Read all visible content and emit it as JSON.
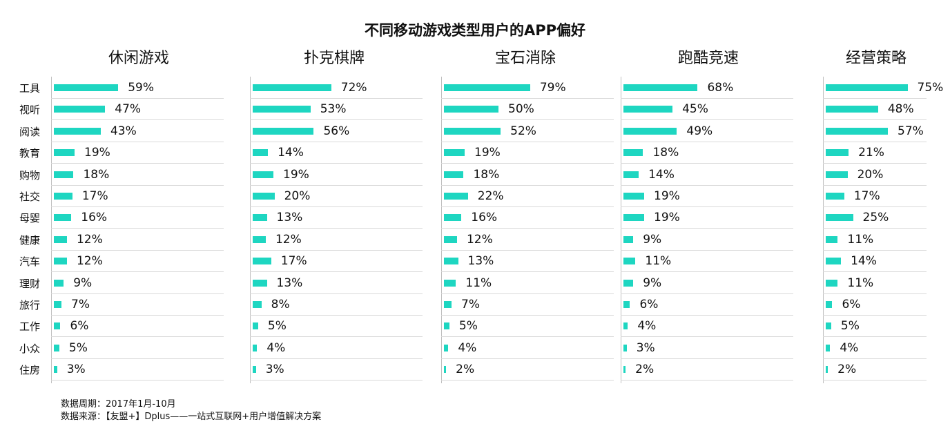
{
  "chart_data": {
    "type": "bar",
    "title": "不同移动游戏类型用户的APP偏好",
    "categories": [
      "工具",
      "视听",
      "阅读",
      "教育",
      "购物",
      "社交",
      "母婴",
      "健康",
      "汽车",
      "理财",
      "旅行",
      "工作",
      "小众",
      "住房"
    ],
    "series": [
      {
        "name": "休闲游戏",
        "values": [
          59,
          47,
          43,
          19,
          18,
          17,
          16,
          12,
          12,
          9,
          7,
          6,
          5,
          3
        ]
      },
      {
        "name": "扑克棋牌",
        "values": [
          72,
          53,
          56,
          14,
          19,
          20,
          13,
          12,
          17,
          13,
          8,
          5,
          4,
          3
        ]
      },
      {
        "name": "宝石消除",
        "values": [
          79,
          50,
          52,
          19,
          18,
          22,
          16,
          12,
          13,
          11,
          7,
          5,
          4,
          2
        ]
      },
      {
        "name": "跑酷竞速",
        "values": [
          68,
          45,
          49,
          18,
          14,
          19,
          19,
          9,
          11,
          9,
          6,
          4,
          3,
          2
        ]
      },
      {
        "name": "经营策略",
        "values": [
          75,
          48,
          57,
          21,
          20,
          17,
          25,
          11,
          14,
          11,
          6,
          5,
          4,
          2
        ]
      }
    ],
    "value_suffix": "%",
    "orientation": "horizontal",
    "colors": {
      "bar": "#1ed6c1",
      "gridline": "#d9d9d9"
    }
  },
  "footnotes": {
    "period": "数据周期：2017年1月-10月",
    "source": "数据来源：【友盟+】Dplus——一站式互联网+用户增值解决方案"
  }
}
